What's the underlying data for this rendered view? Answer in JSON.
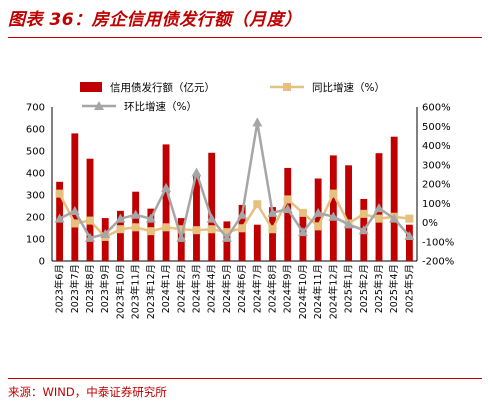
{
  "figure": {
    "title": "图表 36：房企信用债发行额（月度）",
    "source": "来源：WIND，中泰证券研究所"
  },
  "colors": {
    "bar": "#c00000",
    "yoy": "#e7c07f",
    "mom": "#a6a6a6",
    "title_red": "#c00000"
  },
  "chart_data": {
    "type": "bar",
    "title": "",
    "categories": [
      "2023年6月",
      "2023年7月",
      "2023年8月",
      "2023年9月",
      "2023年10月",
      "2023年11月",
      "2023年12月",
      "2024年1月",
      "2024年2月",
      "2024年3月",
      "2024年4月",
      "2024年5月",
      "2024年6月",
      "2024年7月",
      "2024年8月",
      "2024年9月",
      "2024年10月",
      "2024年11月",
      "2024年12月",
      "2025年1月",
      "2025年2月",
      "2025年3月",
      "2025年4月",
      "2025年5月"
    ],
    "series": [
      {
        "name": "信用债发行额（亿元）",
        "type": "bar",
        "axis": "left",
        "values": [
          360,
          580,
          465,
          195,
          228,
          315,
          238,
          530,
          195,
          385,
          492,
          180,
          255,
          165,
          245,
          423,
          205,
          375,
          480,
          435,
          282,
          490,
          565,
          165
        ]
      },
      {
        "name": "同比增速（%）",
        "type": "line",
        "axis": "right",
        "marker": "square",
        "values": [
          150,
          -5,
          10,
          -75,
          -35,
          -25,
          -45,
          -25,
          -35,
          -40,
          -35,
          -50,
          -30,
          95,
          -35,
          120,
          50,
          -20,
          150,
          -5,
          45,
          20,
          30,
          20
        ]
      },
      {
        "name": "环比增速（%）",
        "type": "line",
        "axis": "right",
        "marker": "triangle",
        "values": [
          20,
          60,
          -80,
          -60,
          20,
          40,
          20,
          180,
          -80,
          260,
          20,
          -80,
          40,
          520,
          50,
          70,
          -50,
          50,
          30,
          -10,
          -40,
          75,
          20,
          -70
        ]
      }
    ],
    "y_left": {
      "min": 0,
      "max": 700,
      "ticks": [
        "0",
        "100",
        "200",
        "300",
        "400",
        "500",
        "600",
        "700"
      ]
    },
    "y_right": {
      "min": -200,
      "max": 600,
      "ticks": [
        "-200%",
        "-100%",
        "0%",
        "100%",
        "200%",
        "300%",
        "400%",
        "500%",
        "600%"
      ]
    },
    "legend": {
      "position": "top"
    },
    "grid": false
  }
}
